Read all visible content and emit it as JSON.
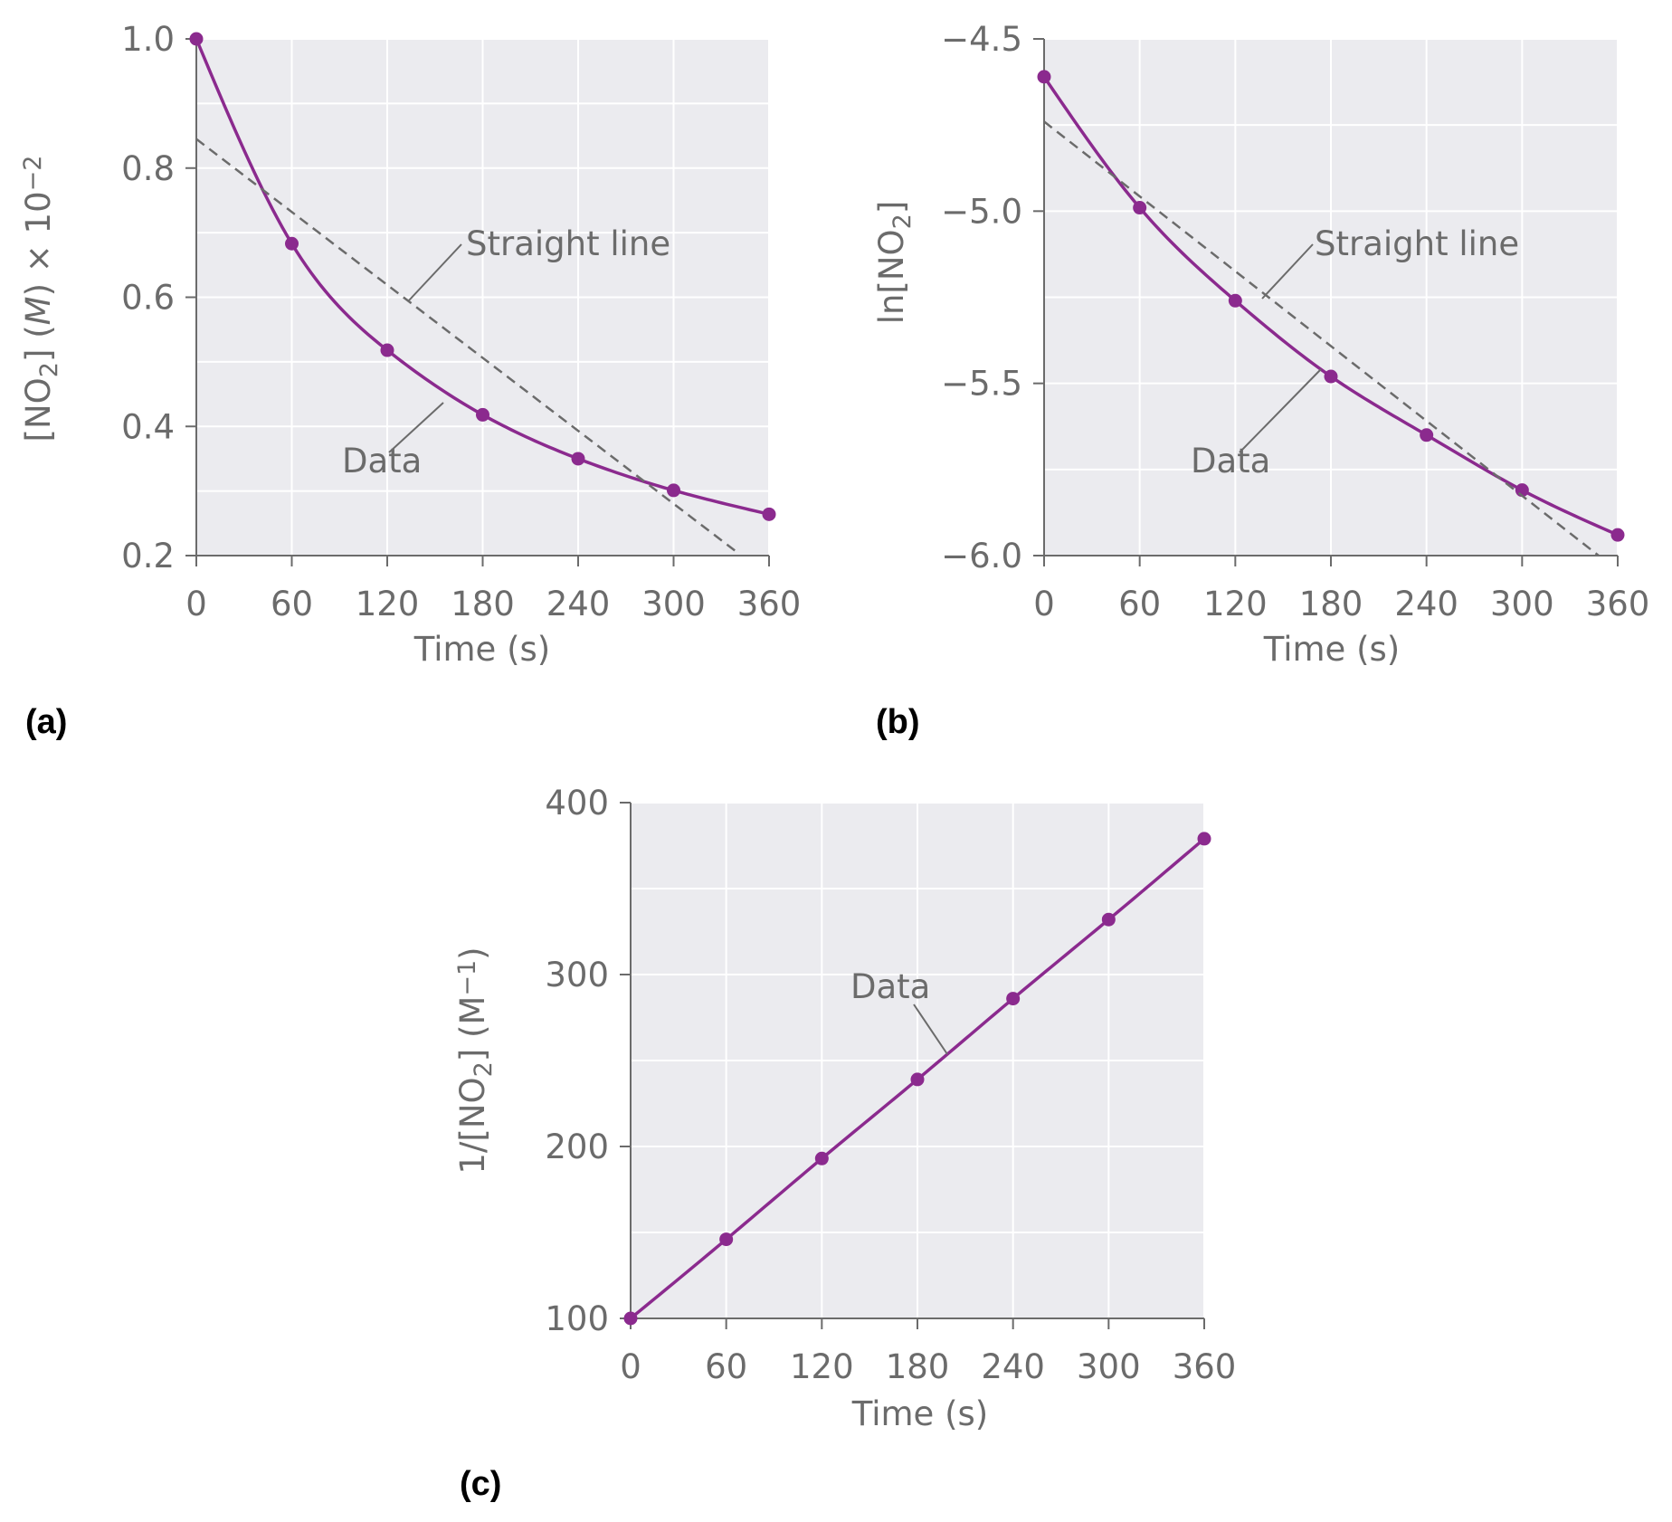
{
  "chart_data": [
    {
      "type": "line",
      "panel_label": "(a)",
      "xlabel": "Time (s)",
      "ylabel": {
        "pre": "[NO",
        "sub": "2",
        "mid": "] (",
        "ital": "M",
        "post": ") × 10",
        "sup": "−2"
      },
      "xlim": [
        0,
        360
      ],
      "ylim": [
        0.2,
        1.0
      ],
      "x_ticks": [
        0,
        60,
        120,
        180,
        240,
        300,
        360
      ],
      "y_ticks": [
        0.2,
        0.4,
        0.6,
        0.8,
        1.0
      ],
      "y_tick_labels": [
        "0.2",
        "0.4",
        "0.6",
        "0.8",
        "1.0"
      ],
      "grid": true,
      "series": [
        {
          "name": "Data",
          "x": [
            0,
            60,
            120,
            180,
            240,
            300,
            360
          ],
          "y": [
            1.0,
            0.683,
            0.518,
            0.418,
            0.35,
            0.301,
            0.264
          ],
          "color": "#8b2a8e"
        },
        {
          "name": "Straight line",
          "style": "dashed",
          "x": [
            0,
            340
          ],
          "y": [
            0.845,
            0.205
          ],
          "color": "#6b6b6b"
        }
      ],
      "annotations": [
        {
          "text": "Straight line",
          "target_series": "Straight line"
        },
        {
          "text": "Data",
          "target_series": "Data"
        }
      ]
    },
    {
      "type": "line",
      "panel_label": "(b)",
      "xlabel": "Time (s)",
      "ylabel": {
        "pre": "ln[NO",
        "sub": "2",
        "post": "]"
      },
      "xlim": [
        0,
        360
      ],
      "ylim": [
        -6.0,
        -4.5
      ],
      "x_ticks": [
        0,
        60,
        120,
        180,
        240,
        300,
        360
      ],
      "y_ticks": [
        -6.0,
        -5.5,
        -5.0,
        -4.5
      ],
      "y_tick_labels": [
        "−6.0",
        "−5.5",
        "−5.0",
        "−4.5"
      ],
      "grid": true,
      "series": [
        {
          "name": "Data",
          "x": [
            0,
            60,
            120,
            180,
            240,
            300,
            360
          ],
          "y": [
            -4.61,
            -4.99,
            -5.26,
            -5.48,
            -5.65,
            -5.81,
            -5.94
          ],
          "color": "#8b2a8e"
        },
        {
          "name": "Straight line",
          "style": "dashed",
          "x": [
            0,
            348
          ],
          "y": [
            -4.74,
            -6.0
          ],
          "color": "#6b6b6b"
        }
      ],
      "annotations": [
        {
          "text": "Straight line",
          "target_series": "Straight line"
        },
        {
          "text": "Data",
          "target_series": "Data"
        }
      ]
    },
    {
      "type": "line",
      "panel_label": "(c)",
      "xlabel": "Time (s)",
      "ylabel": {
        "pre": "1/[NO",
        "sub": "2",
        "post": "] (M",
        "sup": "−1",
        "end": ")"
      },
      "xlim": [
        0,
        360
      ],
      "ylim": [
        100,
        400
      ],
      "x_ticks": [
        0,
        60,
        120,
        180,
        240,
        300,
        360
      ],
      "y_ticks": [
        100,
        200,
        300,
        400
      ],
      "y_tick_labels": [
        "100",
        "200",
        "300",
        "400"
      ],
      "grid": true,
      "series": [
        {
          "name": "Data",
          "x": [
            0,
            60,
            120,
            180,
            240,
            300,
            360
          ],
          "y": [
            100,
            146,
            193,
            239,
            286,
            332,
            379
          ],
          "color": "#8b2a8e"
        }
      ],
      "annotations": [
        {
          "text": "Data",
          "target_series": "Data"
        }
      ]
    }
  ],
  "colors": {
    "plot_bg": "#ebebef",
    "grid": "#ffffff",
    "axis": "#6b6b6b",
    "data": "#8b2a8e",
    "text": "#6b6b6b"
  }
}
